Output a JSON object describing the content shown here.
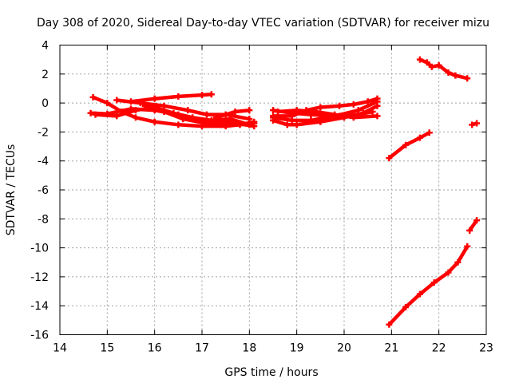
{
  "chart_data": {
    "type": "line",
    "title": "Day 308 of 2020, Sidereal Day-to-day VTEC variation (SDTVAR) for receiver mizu",
    "xlabel": "GPS time / hours",
    "ylabel": "SDTVAR / TECUs",
    "xlim": [
      14,
      23
    ],
    "ylim": [
      -16,
      4
    ],
    "x_ticks": [
      "14",
      "15",
      "16",
      "17",
      "18",
      "19",
      "20",
      "21",
      "22",
      "23"
    ],
    "y_ticks": [
      "4",
      "2",
      "0",
      "-2",
      "-4",
      "-6",
      "-8",
      "-10",
      "-12",
      "-14",
      "-16"
    ],
    "x_tick_values": [
      14,
      15,
      16,
      17,
      18,
      19,
      20,
      21,
      22,
      23
    ],
    "y_tick_values": [
      4,
      2,
      0,
      -2,
      -4,
      -6,
      -8,
      -10,
      -12,
      -14,
      -16
    ],
    "grid": true,
    "color": "#ff0000",
    "series": [
      {
        "values": [
          [
            14.65,
            -0.7
          ],
          [
            15.0,
            -0.75
          ],
          [
            15.5,
            -0.4
          ],
          [
            16.0,
            -0.5
          ],
          [
            16.5,
            -0.8
          ],
          [
            17.0,
            -1.2
          ],
          [
            17.5,
            -1.3
          ],
          [
            18.1,
            -1.6
          ]
        ]
      },
      {
        "values": [
          [
            14.7,
            0.4
          ],
          [
            15.0,
            0.0
          ],
          [
            15.3,
            -0.6
          ],
          [
            15.6,
            -1.0
          ],
          [
            16.0,
            -1.3
          ],
          [
            16.5,
            -1.5
          ],
          [
            17.0,
            -1.6
          ],
          [
            17.5,
            -1.6
          ],
          [
            18.1,
            -1.4
          ]
        ]
      },
      {
        "values": [
          [
            14.75,
            -0.8
          ],
          [
            15.2,
            -0.9
          ],
          [
            15.6,
            -0.5
          ],
          [
            16.0,
            -0.3
          ],
          [
            16.4,
            -0.7
          ],
          [
            16.8,
            -1.0
          ],
          [
            17.2,
            -1.2
          ],
          [
            17.6,
            -1.1
          ],
          [
            18.0,
            -1.5
          ]
        ]
      },
      {
        "values": [
          [
            15.2,
            0.2
          ],
          [
            15.7,
            0.0
          ],
          [
            16.2,
            -0.2
          ],
          [
            16.7,
            -0.5
          ],
          [
            17.1,
            -0.8
          ],
          [
            17.5,
            -0.8
          ],
          [
            18.0,
            -1.1
          ]
        ]
      },
      {
        "values": [
          [
            15.5,
            0.1
          ],
          [
            16.0,
            0.3
          ],
          [
            16.5,
            0.45
          ],
          [
            17.0,
            0.55
          ],
          [
            17.2,
            0.6
          ]
        ]
      },
      {
        "values": [
          [
            15.8,
            -0.2
          ],
          [
            16.2,
            -0.6
          ],
          [
            16.6,
            -1.1
          ],
          [
            17.0,
            -1.35
          ],
          [
            17.4,
            -1.5
          ],
          [
            17.8,
            -1.5
          ],
          [
            18.1,
            -1.3
          ]
        ]
      },
      {
        "values": [
          [
            17.3,
            -1.0
          ],
          [
            17.7,
            -0.6
          ],
          [
            18.0,
            -0.5
          ]
        ]
      },
      {
        "values": [
          [
            18.5,
            -1.2
          ],
          [
            18.8,
            -1.5
          ],
          [
            19.0,
            -1.5
          ],
          [
            19.5,
            -1.3
          ],
          [
            20.0,
            -1.0
          ],
          [
            20.4,
            -0.7
          ],
          [
            20.7,
            -0.2
          ]
        ]
      },
      {
        "values": [
          [
            18.5,
            -0.5
          ],
          [
            18.9,
            -0.7
          ],
          [
            19.3,
            -0.8
          ],
          [
            19.8,
            -0.9
          ],
          [
            20.3,
            -0.5
          ],
          [
            20.7,
            0.1
          ]
        ]
      },
      {
        "values": [
          [
            18.5,
            -0.9
          ],
          [
            18.9,
            -0.9
          ],
          [
            19.2,
            -0.5
          ],
          [
            19.5,
            -0.3
          ],
          [
            19.9,
            -0.2
          ],
          [
            20.2,
            -0.1
          ],
          [
            20.5,
            0.1
          ],
          [
            20.7,
            0.3
          ]
        ]
      },
      {
        "values": [
          [
            18.6,
            -0.6
          ],
          [
            19.0,
            -0.5
          ],
          [
            19.4,
            -0.6
          ],
          [
            19.8,
            -0.8
          ],
          [
            20.2,
            -1.0
          ],
          [
            20.7,
            -0.9
          ]
        ]
      },
      {
        "values": [
          [
            18.5,
            -1.0
          ],
          [
            18.9,
            -1.2
          ],
          [
            19.3,
            -1.2
          ],
          [
            19.6,
            -1.0
          ],
          [
            19.9,
            -0.9
          ],
          [
            20.3,
            -0.8
          ],
          [
            20.6,
            -0.6
          ]
        ]
      },
      {
        "values": [
          [
            20.95,
            -3.8
          ],
          [
            21.3,
            -2.9
          ],
          [
            21.6,
            -2.4
          ],
          [
            21.8,
            -2.05
          ]
        ]
      },
      {
        "values": [
          [
            20.95,
            -15.3
          ],
          [
            21.3,
            -14.1
          ],
          [
            21.6,
            -13.2
          ],
          [
            21.9,
            -12.4
          ],
          [
            22.2,
            -11.7
          ],
          [
            22.4,
            -11.0
          ],
          [
            22.6,
            -9.9
          ]
        ]
      },
      {
        "values": [
          [
            22.65,
            -8.8
          ],
          [
            22.8,
            -8.1
          ]
        ]
      },
      {
        "values": [
          [
            21.6,
            3.0
          ],
          [
            21.75,
            2.8
          ],
          [
            21.85,
            2.5
          ],
          [
            22.0,
            2.6
          ],
          [
            22.2,
            2.1
          ],
          [
            22.35,
            1.9
          ],
          [
            22.6,
            1.7
          ]
        ]
      },
      {
        "values": [
          [
            22.7,
            -1.5
          ],
          [
            22.8,
            -1.4
          ]
        ]
      }
    ]
  }
}
